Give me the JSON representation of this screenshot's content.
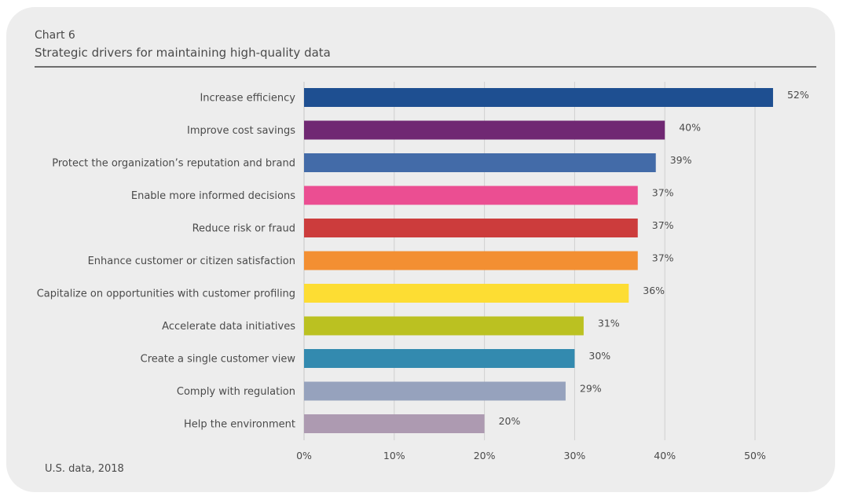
{
  "header": {
    "chart_number": "Chart 6",
    "title": "Strategic drivers for maintaining high-quality data"
  },
  "footnote": "U.S. data, 2018",
  "chart_data": {
    "type": "bar",
    "orientation": "horizontal",
    "title": "Strategic drivers for maintaining high-quality data",
    "xlabel": "",
    "ylabel": "",
    "xlim": [
      0,
      50
    ],
    "x_ticks": [
      0,
      10,
      20,
      30,
      40,
      50
    ],
    "x_tick_labels": [
      "0%",
      "10%",
      "20%",
      "30%",
      "40%",
      "50%"
    ],
    "grid": "vertical",
    "categories": [
      "Increase efficiency",
      "Improve cost savings",
      "Protect the organization’s reputation and brand",
      "Enable more informed decisions",
      "Reduce risk or fraud",
      "Enhance customer or citizen satisfaction",
      "Capitalize on opportunities with customer profiling",
      "Accelerate data initiatives",
      "Create a single customer view",
      "Comply with regulation",
      "Help the environment"
    ],
    "values": [
      52,
      40,
      39,
      37,
      37,
      37,
      36,
      31,
      30,
      29,
      20
    ],
    "value_labels": [
      "52%",
      "40%",
      "39%",
      "37%",
      "37%",
      "37%",
      "36%",
      "31%",
      "30%",
      "29%",
      "20%"
    ],
    "colors": [
      "#1e4f91",
      "#702873",
      "#436ba8",
      "#eb4e92",
      "#cc3c3c",
      "#f38f32",
      "#fddd33",
      "#bbc121",
      "#338aaf",
      "#96a2bd",
      "#ad9ab1"
    ],
    "source_note": "U.S. data, 2018"
  }
}
